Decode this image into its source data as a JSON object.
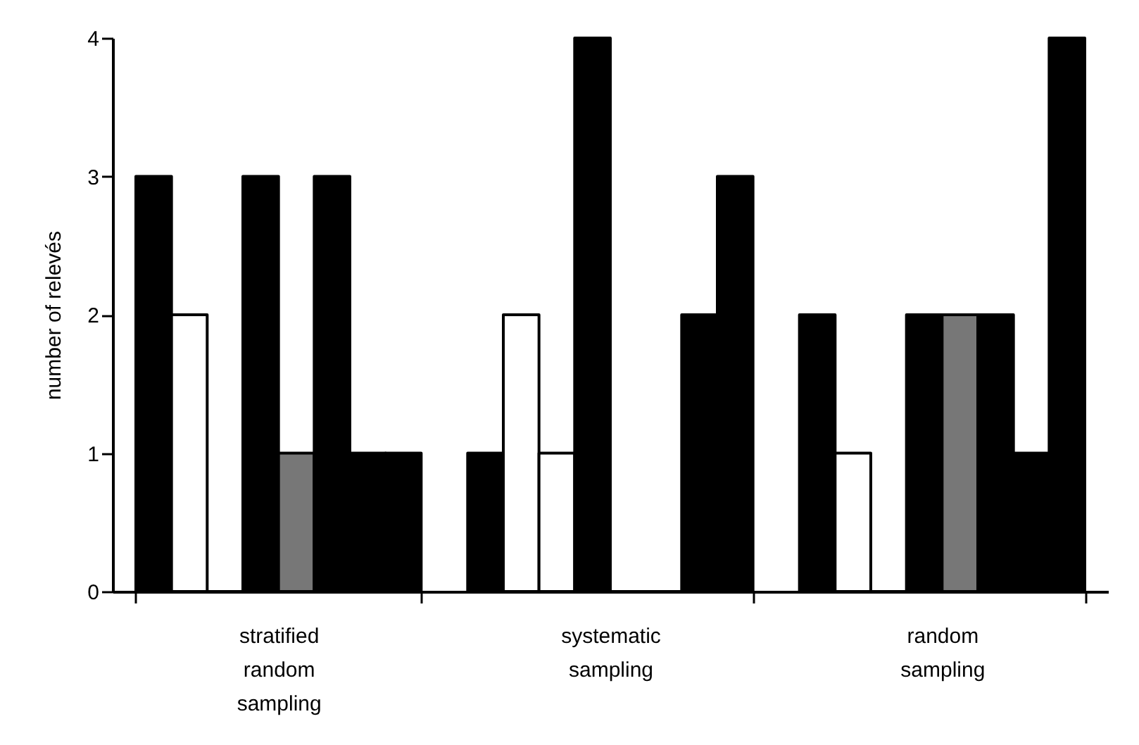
{
  "chart_data": {
    "type": "bar",
    "ylabel": "number of relevés",
    "categories": [
      "stratified random sampling",
      "systematic sampling",
      "random sampling"
    ],
    "series": [
      {
        "color": "#000000",
        "values": [
          3,
          1,
          2
        ]
      },
      {
        "color": "#ffffff",
        "values": [
          2,
          2,
          1
        ]
      },
      {
        "color": "#ffffff",
        "values": [
          0,
          1,
          0
        ]
      },
      {
        "color": "#000000",
        "values": [
          3,
          4,
          2
        ]
      },
      {
        "color": "#777777",
        "values": [
          1,
          0,
          2
        ]
      },
      {
        "color": "#000000",
        "values": [
          3,
          0,
          2
        ]
      },
      {
        "color": "#000000",
        "values": [
          1,
          2,
          1
        ]
      },
      {
        "color": "#000000",
        "values": [
          1,
          3,
          4
        ]
      }
    ],
    "ylim": [
      0,
      4
    ],
    "yticks": [
      0,
      1,
      2,
      3,
      4
    ],
    "grid": false,
    "legend": false
  }
}
